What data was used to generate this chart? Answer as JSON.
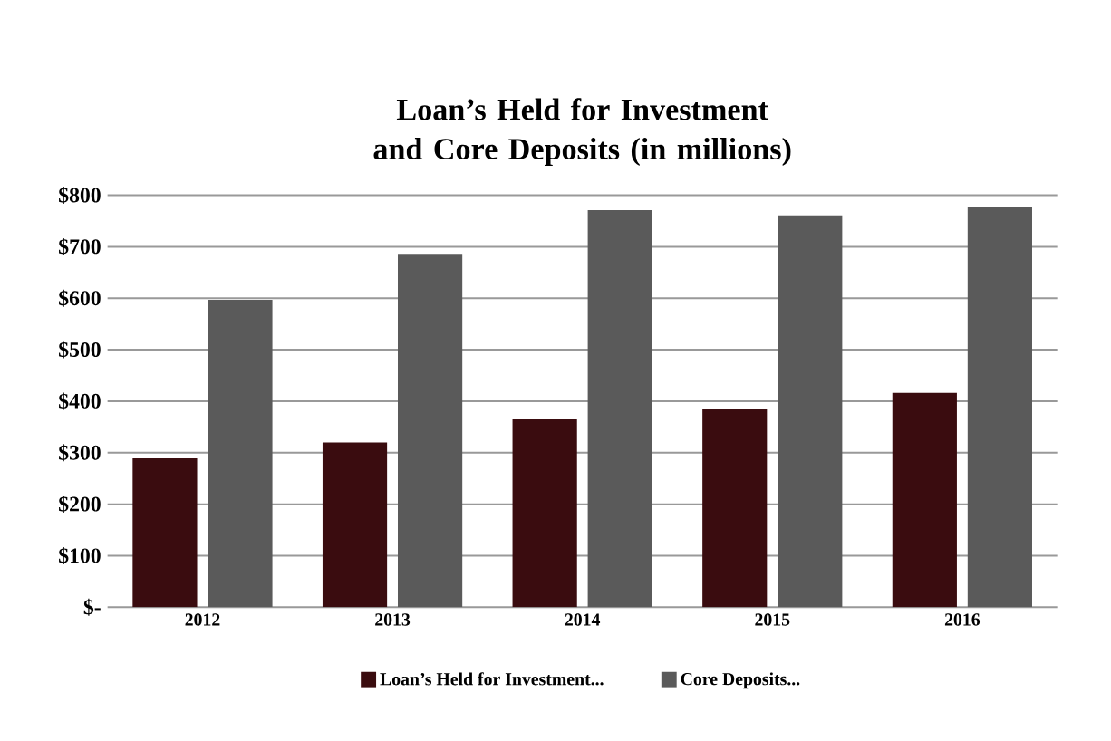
{
  "chart_data": {
    "type": "bar",
    "title": "Loan’s Held for Investment\nand Core Deposits (in millions)",
    "categories": [
      "2012",
      "2013",
      "2014",
      "2015",
      "2016"
    ],
    "series": [
      {
        "name": "Loan’s Held for Investment...",
        "color": "#3a0c0f",
        "values": [
          289,
          320,
          365,
          385,
          416
        ]
      },
      {
        "name": "Core Deposits...",
        "color": "#5a5a5a",
        "values": [
          597,
          686,
          771,
          761,
          778
        ]
      }
    ],
    "ylim": [
      0,
      800
    ],
    "yticks": [
      {
        "value": 0,
        "label": "$-"
      },
      {
        "value": 100,
        "label": "$100"
      },
      {
        "value": 200,
        "label": "$200"
      },
      {
        "value": 300,
        "label": "$300"
      },
      {
        "value": 400,
        "label": "$400"
      },
      {
        "value": 500,
        "label": "$500"
      },
      {
        "value": 600,
        "label": "$600"
      },
      {
        "value": 700,
        "label": "$700"
      },
      {
        "value": 800,
        "label": "$800"
      }
    ],
    "grid": "y",
    "legend": "bottom"
  }
}
